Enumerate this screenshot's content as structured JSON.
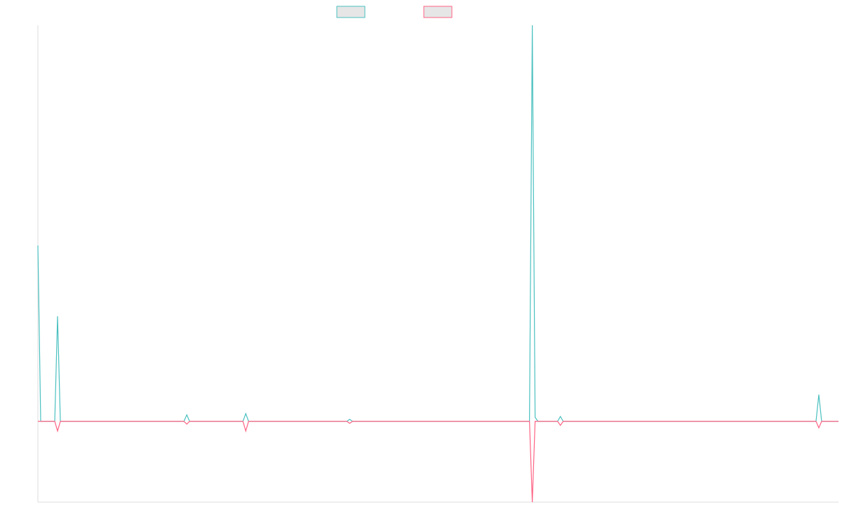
{
  "chart_data": {
    "type": "line",
    "x": [
      0,
      1,
      6,
      7,
      8,
      52,
      53,
      54,
      73,
      74,
      75,
      110,
      111,
      112,
      175,
      176,
      177,
      178,
      185,
      186,
      187,
      277,
      278,
      279,
      285
    ],
    "series": [
      {
        "color": "#4bc0c0",
        "values": [
          43.5,
          0,
          0,
          26,
          0,
          0,
          1.6,
          0,
          0,
          1.9,
          0,
          0,
          0.5,
          0,
          0,
          98,
          1,
          0,
          0,
          1.2,
          0,
          0,
          6.6,
          0,
          0
        ]
      },
      {
        "color": "#ff6384",
        "values": [
          0,
          0,
          0,
          -2.4,
          0,
          0,
          -0.7,
          0,
          0,
          -2.4,
          0,
          0,
          -0.5,
          0,
          0,
          -20,
          0,
          0,
          0,
          -1,
          0,
          0,
          -1.6,
          0,
          0
        ]
      }
    ],
    "xlim": [
      0,
      285
    ],
    "ylim": [
      -20,
      98
    ]
  }
}
